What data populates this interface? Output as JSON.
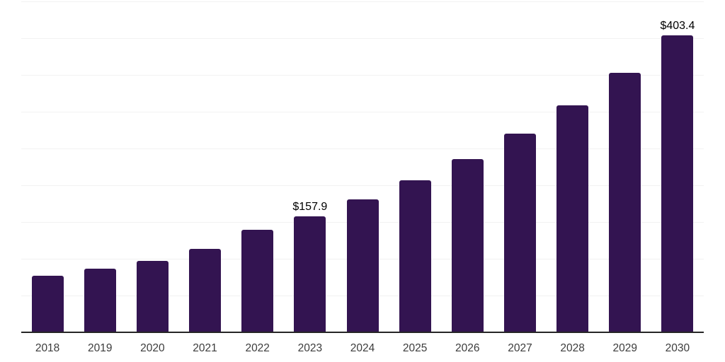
{
  "chart_data": {
    "type": "bar",
    "title": "",
    "xlabel": "",
    "ylabel": "",
    "categories": [
      "2018",
      "2019",
      "2020",
      "2021",
      "2022",
      "2023",
      "2024",
      "2025",
      "2026",
      "2027",
      "2028",
      "2029",
      "2030"
    ],
    "values": [
      77,
      87,
      97,
      113,
      139,
      157.9,
      180.5,
      206.4,
      236,
      269.9,
      308.6,
      352.8,
      403.4
    ],
    "data_labels": {
      "2023": "$157.9",
      "2030": "$403.4"
    },
    "ylim": [
      0,
      450
    ],
    "grid_step": 50,
    "grid": "horizontal",
    "legend": "none",
    "colors": {
      "bar": "#331451",
      "gridline": "#f2f2f2",
      "axis": "#262626",
      "tick_label": "#3c3c3c",
      "value_label": "#000000",
      "background": "#ffffff"
    }
  }
}
